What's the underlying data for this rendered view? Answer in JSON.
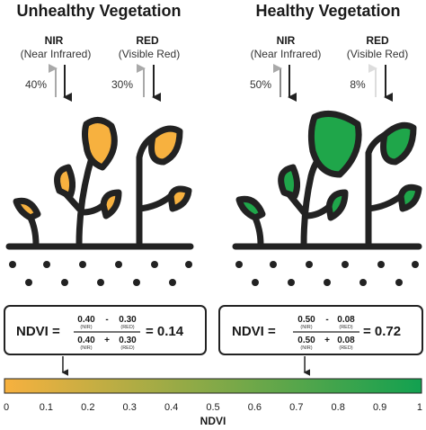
{
  "colors": {
    "unhealthy_leaf": "#F7B13F",
    "healthy_leaf": "#1FA64A",
    "outline": "#222222",
    "reflect_arrow_weak": "#A9A9A9",
    "reflect_arrow_faint": "#DDDDDD",
    "scale_start": "#F7B13F",
    "scale_end": "#12A150"
  },
  "panels": [
    {
      "title": "Unhealthy Vegetation",
      "nir_label": "NIR",
      "nir_sub": "(Near Infrared)",
      "red_label": "RED",
      "red_sub": "(Visible Red)",
      "nir_reflect": "40%",
      "red_reflect": "30%",
      "formula": {
        "lhs": "NDVI =",
        "num_a": "0.40",
        "num_op": "-",
        "num_b": "0.30",
        "den_a": "0.40",
        "den_op": "+",
        "den_b": "0.30",
        "sub_nir": "(NIR)",
        "sub_red": "(RED)",
        "result": "= 0.14"
      },
      "ndvi_value": 0.14
    },
    {
      "title": "Healthy Vegetation",
      "nir_label": "NIR",
      "nir_sub": "(Near Infrared)",
      "red_label": "RED",
      "red_sub": "(Visible Red)",
      "nir_reflect": "50%",
      "red_reflect": "8%",
      "formula": {
        "lhs": "NDVI =",
        "num_a": "0.50",
        "num_op": "-",
        "num_b": "0.08",
        "den_a": "0.50",
        "den_op": "+",
        "den_b": "0.08",
        "sub_nir": "(NIR)",
        "sub_red": "(RED)",
        "result": "= 0.72"
      },
      "ndvi_value": 0.72
    }
  ],
  "scale": {
    "ticks": [
      "0",
      "0.1",
      "0.2",
      "0.3",
      "0.4",
      "0.5",
      "0.6",
      "0.7",
      "0.8",
      "0.9",
      "1"
    ],
    "title": "NDVI",
    "min": 0,
    "max": 1
  }
}
